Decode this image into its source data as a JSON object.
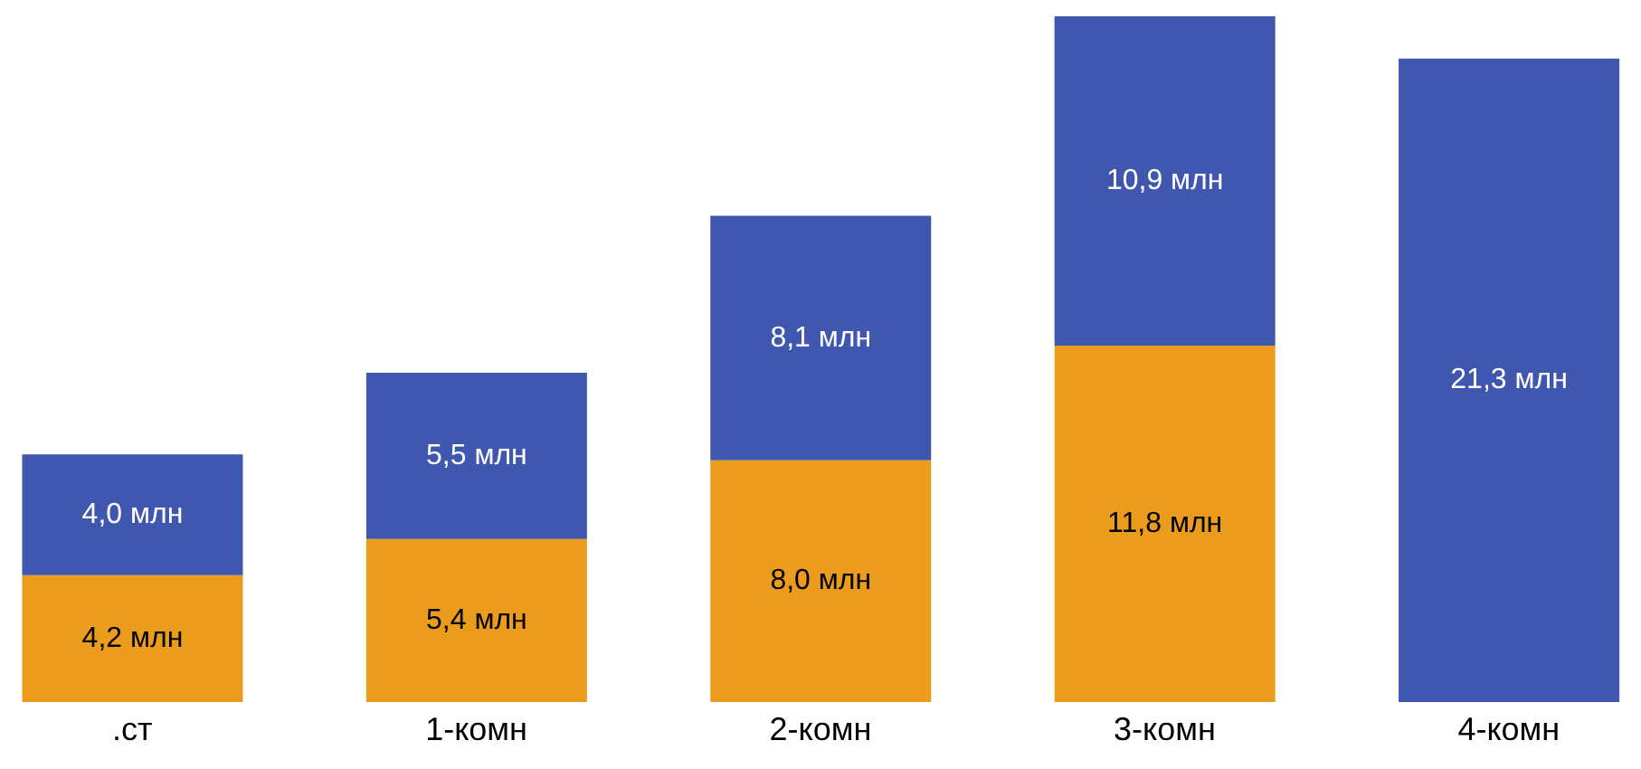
{
  "chart_data": {
    "type": "bar",
    "stacked": true,
    "categories": [
      ".ст",
      "1-комн",
      "2-комн",
      "3-комн",
      "4-комн"
    ],
    "series": [
      {
        "color": "#ec9c1d",
        "values": [
          4.2,
          5.4,
          8.0,
          11.8,
          null
        ],
        "value_labels": [
          "4,2 млн",
          "5,4 млн",
          "8,0 млн",
          "11,8 млн",
          null
        ]
      },
      {
        "color": "#3f57ae",
        "values": [
          4.0,
          5.5,
          8.1,
          10.9,
          21.3
        ],
        "value_labels": [
          "4,0 млн",
          "5,5 млн",
          "8,1 млн",
          "10,9 млн",
          "21,3 млн"
        ]
      }
    ],
    "tick_labels": "x",
    "legend": false,
    "grid": false
  }
}
